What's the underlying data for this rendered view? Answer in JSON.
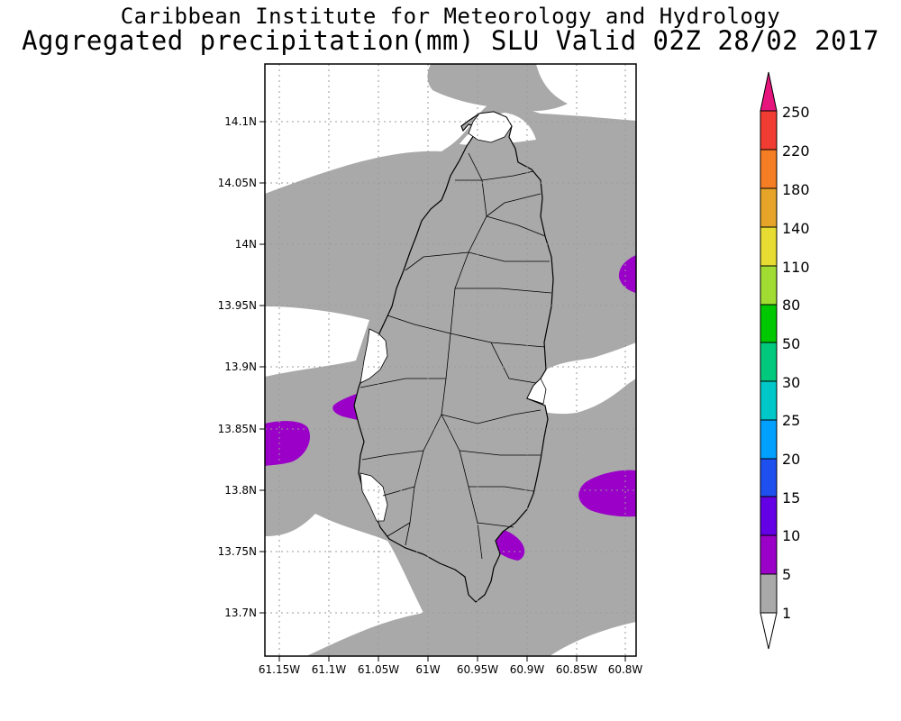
{
  "header": {
    "institute": "Caribbean Institute for Meteorology and Hydrology",
    "product": "Aggregated precipitation(mm) SLU Valid 02Z 28/02 2017"
  },
  "map": {
    "region": "Saint Lucia",
    "lat_ticks": [
      "14.1N",
      "14.05N",
      "14N",
      "13.95N",
      "13.9N",
      "13.85N",
      "13.8N",
      "13.75N",
      "13.7N"
    ],
    "lon_ticks": [
      "61.15W",
      "61.1W",
      "61.05W",
      "61W",
      "60.95W",
      "60.9W",
      "60.85W",
      "60.8W"
    ],
    "grid": true,
    "colors": {
      "1-5": "#a9a9a9",
      "5-10": "#9a00c8",
      "coast": "#000000"
    }
  },
  "colorbar": {
    "labels": [
      "250",
      "220",
      "180",
      "140",
      "110",
      "80",
      "50",
      "30",
      "25",
      "20",
      "15",
      "10",
      "5",
      "1"
    ],
    "segments": [
      "#e6147d",
      "#f03c32",
      "#f57d23",
      "#e6a528",
      "#e6dc32",
      "#a0dc32",
      "#00c800",
      "#00c87d",
      "#00c8c8",
      "#00a0ff",
      "#1e50f0",
      "#6400e6",
      "#9a00c8",
      "#a9a9a9",
      "#ffffff"
    ]
  }
}
